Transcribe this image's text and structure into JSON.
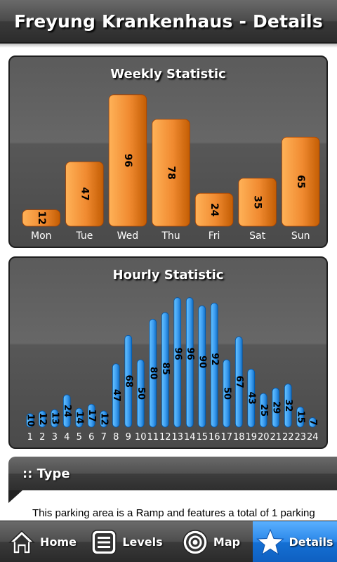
{
  "header": {
    "title": "Freyung Krankenhaus - Details"
  },
  "weekly": {
    "title": "Weekly Statistic",
    "chart_data": {
      "type": "bar",
      "categories": [
        "Mon",
        "Tue",
        "Wed",
        "Thu",
        "Fri",
        "Sat",
        "Sun"
      ],
      "values": [
        12,
        47,
        96,
        78,
        24,
        35,
        65
      ],
      "ylim": [
        0,
        100
      ],
      "color": "#f08a30"
    }
  },
  "hourly": {
    "title": "Hourly Statistic",
    "chart_data": {
      "type": "bar",
      "categories": [
        "1",
        "2",
        "3",
        "4",
        "5",
        "6",
        "7",
        "8",
        "9",
        "10",
        "11",
        "12",
        "13",
        "14",
        "15",
        "16",
        "17",
        "18",
        "19",
        "20",
        "21",
        "22",
        "23",
        "24"
      ],
      "values": [
        10,
        12,
        13,
        24,
        14,
        17,
        12,
        47,
        68,
        50,
        80,
        85,
        96,
        96,
        90,
        92,
        50,
        67,
        43,
        25,
        29,
        32,
        15,
        7
      ],
      "ylim": [
        0,
        100
      ],
      "color": "#3d9cf0"
    }
  },
  "type_section": {
    "title": ":: Type",
    "description": "This parking area is a Ramp and features a total of 1 parking"
  },
  "tabs": [
    {
      "label": "Home",
      "icon": "home-icon"
    },
    {
      "label": "Levels",
      "icon": "list-icon"
    },
    {
      "label": "Map",
      "icon": "target-icon"
    },
    {
      "label": "Details",
      "icon": "star-icon",
      "active": true
    }
  ]
}
